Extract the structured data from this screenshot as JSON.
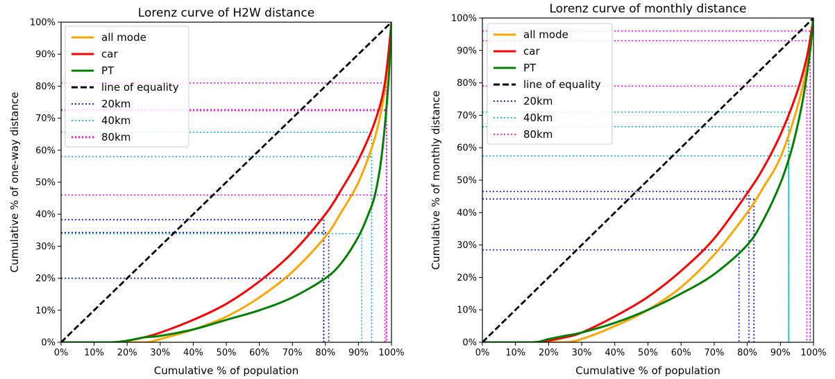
{
  "chart_data": [
    {
      "type": "line",
      "title": "Lorenz curve of H2W distance",
      "xlabel": "Cumulative % of population",
      "ylabel": "Cumulative % of one-way distance",
      "xlim": [
        0,
        100
      ],
      "ylim": [
        0,
        100
      ],
      "x_ticks": [
        "0%",
        "10%",
        "20%",
        "30%",
        "40%",
        "50%",
        "60%",
        "70%",
        "80%",
        "90%",
        "100%"
      ],
      "y_ticks": [
        "0%",
        "10%",
        "20%",
        "30%",
        "40%",
        "50%",
        "60%",
        "70%",
        "80%",
        "90%",
        "100%"
      ],
      "grid": false,
      "legend_position": "top-left",
      "legend": [
        {
          "label": "all mode",
          "color": "#ffa500",
          "style": "solid"
        },
        {
          "label": "car",
          "color": "#ff0000",
          "style": "solid"
        },
        {
          "label": "PT",
          "color": "#008000",
          "style": "solid"
        },
        {
          "label": "line of equality",
          "color": "#000000",
          "style": "dashed"
        },
        {
          "label": "20km",
          "color": "#0000ff",
          "style": "dotted"
        },
        {
          "label": "40km",
          "color": "#00c0c0",
          "style": "dotted"
        },
        {
          "label": "80km",
          "color": "#ff00ff",
          "style": "dotted-thick"
        }
      ],
      "series": [
        {
          "key": "all",
          "color": "#ffa500",
          "x": [
            0,
            20,
            26,
            30,
            40,
            50,
            60,
            70,
            80,
            85,
            90,
            95,
            98,
            100
          ],
          "y": [
            0,
            0,
            0,
            1,
            4,
            8,
            14,
            22,
            33,
            41,
            50,
            64,
            79,
            100
          ]
        },
        {
          "key": "car",
          "color": "#ff0000",
          "x": [
            0,
            15,
            20,
            25,
            30,
            40,
            50,
            60,
            70,
            80,
            85,
            90,
            95,
            98,
            100
          ],
          "y": [
            0,
            0,
            0.5,
            1.5,
            3,
            7,
            12,
            19,
            28,
            40,
            48,
            57,
            69,
            81,
            100
          ]
        },
        {
          "key": "pt",
          "color": "#008000",
          "x": [
            0,
            15,
            20,
            25,
            30,
            40,
            50,
            60,
            70,
            80,
            85,
            90,
            93,
            95,
            97,
            99,
            100
          ],
          "y": [
            0,
            0,
            0.5,
            1.5,
            2,
            4,
            7,
            10,
            14,
            20,
            25,
            33,
            40,
            46,
            58,
            80,
            100
          ]
        },
        {
          "key": "equality",
          "color": "#000000",
          "x": [
            0,
            100
          ],
          "y": [
            0,
            100
          ]
        }
      ],
      "thresholds": [
        {
          "label": "20km",
          "color": "#0000ff",
          "points": [
            {
              "x": 79.5,
              "y": 38.3
            },
            {
              "x": 81,
              "y": 34.3
            },
            {
              "x": 79.5,
              "y": 20
            }
          ]
        },
        {
          "label": "40km",
          "color": "#00c0c0",
          "points": [
            {
              "x": 91,
              "y": 33.9
            },
            {
              "x": 94,
              "y": 58
            },
            {
              "x": 94,
              "y": 65.6
            }
          ]
        },
        {
          "label": "80km",
          "color": "#ff00ff",
          "points": [
            {
              "x": 98,
              "y": 46
            },
            {
              "x": 98.5,
              "y": 72.5
            },
            {
              "x": 98.5,
              "y": 81
            }
          ]
        }
      ]
    },
    {
      "type": "line",
      "title": "Lorenz curve of monthly distance",
      "xlabel": "Cumulative % of population",
      "ylabel": "Cumulative % of monthly distance",
      "xlim": [
        0,
        100
      ],
      "ylim": [
        0,
        100
      ],
      "x_ticks": [
        "0%",
        "10%",
        "20%",
        "30%",
        "40%",
        "50%",
        "60%",
        "70%",
        "80%",
        "90%",
        "100%"
      ],
      "y_ticks": [
        "0%",
        "10%",
        "20%",
        "30%",
        "40%",
        "50%",
        "60%",
        "70%",
        "80%",
        "90%",
        "100%"
      ],
      "grid": false,
      "legend_position": "top-left",
      "legend": [
        {
          "label": "all mode",
          "color": "#ffa500",
          "style": "solid"
        },
        {
          "label": "car",
          "color": "#ff0000",
          "style": "solid"
        },
        {
          "label": "PT",
          "color": "#008000",
          "style": "solid"
        },
        {
          "label": "line of equality",
          "color": "#000000",
          "style": "dashed"
        },
        {
          "label": "20km",
          "color": "#0000ff",
          "style": "dotted"
        },
        {
          "label": "40km",
          "color": "#00c0c0",
          "style": "dotted"
        },
        {
          "label": "80km",
          "color": "#ff00ff",
          "style": "dotted"
        }
      ],
      "series": [
        {
          "key": "all",
          "color": "#ffa500",
          "x": [
            0,
            20,
            25,
            30,
            40,
            50,
            60,
            70,
            80,
            85,
            90,
            95,
            98,
            100
          ],
          "y": [
            0,
            0,
            0,
            1,
            5,
            10,
            17,
            27,
            40,
            48,
            57,
            72,
            85,
            100
          ]
        },
        {
          "key": "car",
          "color": "#ff0000",
          "x": [
            0,
            15,
            20,
            25,
            30,
            40,
            50,
            60,
            70,
            80,
            85,
            90,
            95,
            98,
            100
          ],
          "y": [
            0,
            0,
            0.5,
            1.5,
            3,
            8,
            14,
            22,
            32,
            46,
            54,
            64,
            77,
            88,
            100
          ]
        },
        {
          "key": "pt",
          "color": "#008000",
          "x": [
            0,
            15,
            20,
            25,
            30,
            40,
            50,
            60,
            70,
            80,
            85,
            90,
            93,
            95,
            97,
            99,
            100
          ],
          "y": [
            0,
            0,
            1,
            2,
            3,
            6,
            10,
            15,
            21,
            30,
            38,
            49,
            58,
            66,
            76,
            90,
            100
          ]
        },
        {
          "key": "equality",
          "color": "#000000",
          "x": [
            0,
            100
          ],
          "y": [
            0,
            100
          ]
        }
      ],
      "thresholds": [
        {
          "label": "20km",
          "color": "#0000ff",
          "points": [
            {
              "x": 77.5,
              "y": 28.5
            },
            {
              "x": 80.5,
              "y": 46.5
            },
            {
              "x": 82,
              "y": 44.2
            }
          ]
        },
        {
          "label": "40km",
          "color": "#00c0c0",
          "points": [
            {
              "x": 92.5,
              "y": 57.5
            },
            {
              "x": 92.5,
              "y": 66.5
            },
            {
              "x": 92.5,
              "y": 71
            }
          ]
        },
        {
          "label": "80km",
          "color": "#ff00ff",
          "points": [
            {
              "x": 98,
              "y": 79
            },
            {
              "x": 99,
              "y": 93
            },
            {
              "x": 99,
              "y": 96
            }
          ]
        }
      ]
    }
  ]
}
